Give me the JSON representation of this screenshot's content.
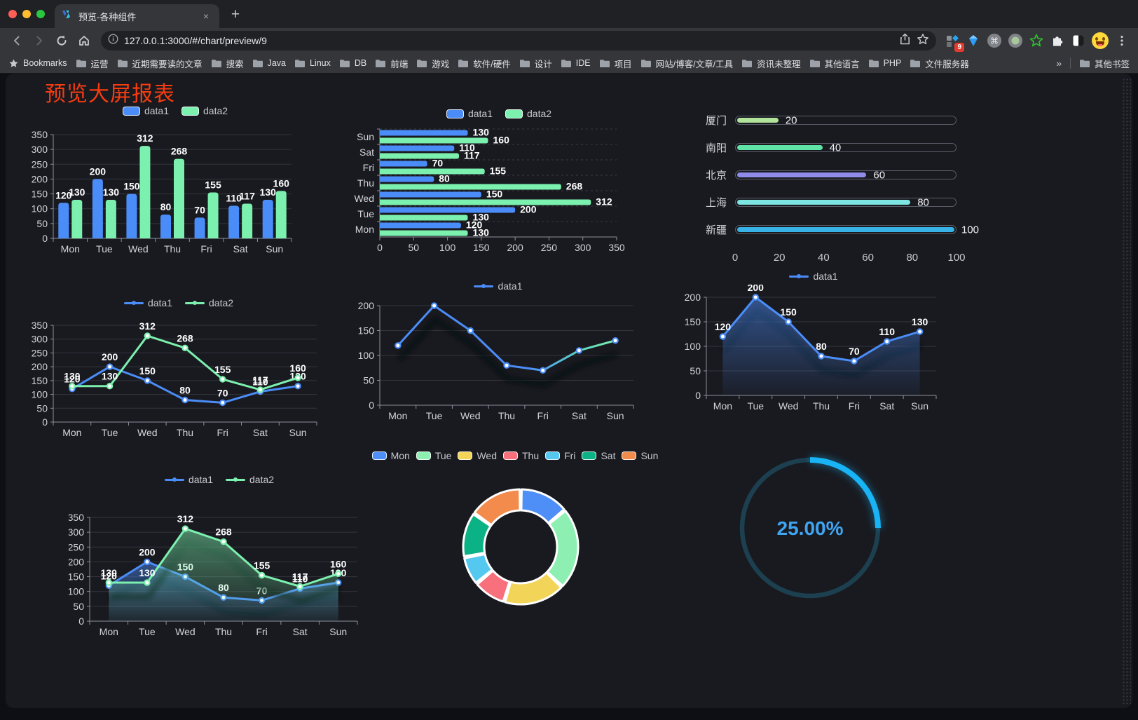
{
  "browser": {
    "tab_title": "预览-各种组件",
    "tab_close": "×",
    "new_tab": "+",
    "url": "127.0.0.1:3000/#/chart/preview/9",
    "bookmarks_label": "Bookmarks",
    "bookmarks": [
      "运营",
      "近期需要读的文章",
      "搜索",
      "Java",
      "Linux",
      "DB",
      "前端",
      "游戏",
      "软件/硬件",
      "设计",
      "IDE",
      "项目",
      "网站/博客/文章/工具",
      "资讯未整理",
      "其他语言",
      "PHP",
      "文件服务器"
    ],
    "overflow_chevron": "»",
    "other_bookmarks": "其他书签",
    "extension_badge": "9"
  },
  "page": {
    "title": "预览大屏报表",
    "title_color": "#f63c10"
  },
  "chart_data": [
    {
      "id": "grouped-bar",
      "type": "bar",
      "categories": [
        "Mon",
        "Tue",
        "Wed",
        "Thu",
        "Fri",
        "Sat",
        "Sun"
      ],
      "series": [
        {
          "name": "data1",
          "color": "#4b8df8",
          "values": [
            120,
            200,
            150,
            80,
            70,
            110,
            130
          ]
        },
        {
          "name": "data2",
          "color": "#7cf0ae",
          "values": [
            130,
            130,
            312,
            268,
            155,
            117,
            160
          ]
        }
      ],
      "ylim": [
        0,
        350
      ],
      "ystep": 50,
      "legend_position": "top",
      "value_labels": true
    },
    {
      "id": "horizontal-bar",
      "type": "bar-horizontal",
      "categories": [
        "Mon",
        "Tue",
        "Wed",
        "Thu",
        "Fri",
        "Sat",
        "Sun"
      ],
      "series": [
        {
          "name": "data1",
          "color": "#4b8df8",
          "values": [
            120,
            200,
            150,
            80,
            70,
            110,
            130
          ]
        },
        {
          "name": "data2",
          "color": "#7cf0ae",
          "values": [
            130,
            130,
            312,
            268,
            155,
            117,
            160
          ]
        }
      ],
      "xlim": [
        0,
        350
      ],
      "xstep": 50,
      "legend_position": "top",
      "value_labels": true
    },
    {
      "id": "city-progress",
      "type": "progress",
      "max": 100,
      "xticks": [
        0,
        20,
        40,
        60,
        80,
        100
      ],
      "rows": [
        {
          "label": "厦门",
          "value": 20,
          "color": "#b2e39b"
        },
        {
          "label": "南阳",
          "value": 40,
          "color": "#5fe3a6"
        },
        {
          "label": "北京",
          "value": 60,
          "color": "#8f8be8"
        },
        {
          "label": "上海",
          "value": 80,
          "color": "#7de6e2"
        },
        {
          "label": "新疆",
          "value": 100,
          "color": "#38b3e8"
        }
      ]
    },
    {
      "id": "line-two-series",
      "type": "line",
      "categories": [
        "Mon",
        "Tue",
        "Wed",
        "Thu",
        "Fri",
        "Sat",
        "Sun"
      ],
      "series": [
        {
          "name": "data1",
          "color": "#4b8df8",
          "values": [
            120,
            200,
            150,
            80,
            70,
            110,
            130
          ]
        },
        {
          "name": "data2",
          "color": "#7cf0ae",
          "values": [
            130,
            130,
            312,
            268,
            155,
            117,
            160
          ]
        }
      ],
      "ylim": [
        0,
        350
      ],
      "ystep": 50,
      "legend_position": "top",
      "value_labels": true
    },
    {
      "id": "line-gradient",
      "type": "line",
      "categories": [
        "Mon",
        "Tue",
        "Wed",
        "Thu",
        "Fri",
        "Sat",
        "Sun"
      ],
      "gradient_line": [
        "#4b8df8",
        "#7cf0ae"
      ],
      "series": [
        {
          "name": "data1",
          "color": "#4b8df8",
          "values": [
            120,
            200,
            150,
            80,
            70,
            110,
            130
          ]
        }
      ],
      "ylim": [
        0,
        200
      ],
      "ystep": 50,
      "legend_position": "top",
      "value_labels": false,
      "shadow": true
    },
    {
      "id": "area-single",
      "type": "area",
      "categories": [
        "Mon",
        "Tue",
        "Wed",
        "Thu",
        "Fri",
        "Sat",
        "Sun"
      ],
      "series": [
        {
          "name": "data1",
          "color": "#4b8df8",
          "values": [
            120,
            200,
            150,
            80,
            70,
            110,
            130
          ],
          "area": true
        }
      ],
      "ylim": [
        0,
        200
      ],
      "ystep": 50,
      "legend_position": "top",
      "value_labels": true,
      "shadow": true
    },
    {
      "id": "area-two-series",
      "type": "area",
      "categories": [
        "Mon",
        "Tue",
        "Wed",
        "Thu",
        "Fri",
        "Sat",
        "Sun"
      ],
      "series": [
        {
          "name": "data1",
          "color": "#4b8df8",
          "values": [
            120,
            200,
            150,
            80,
            70,
            110,
            130
          ],
          "area": true
        },
        {
          "name": "data2",
          "color": "#7cf0ae",
          "values": [
            130,
            130,
            312,
            268,
            155,
            117,
            160
          ],
          "area": true
        }
      ],
      "ylim": [
        0,
        350
      ],
      "ystep": 50,
      "legend_position": "top",
      "value_labels": true,
      "shadow": true
    },
    {
      "id": "weekday-donut",
      "type": "pie",
      "labels": [
        "Mon",
        "Tue",
        "Wed",
        "Thu",
        "Fri",
        "Sat",
        "Sun"
      ],
      "values": [
        120,
        200,
        150,
        80,
        70,
        110,
        130
      ],
      "colors": [
        "#4e8ef7",
        "#8df0b2",
        "#f2d458",
        "#f7707c",
        "#55c8f0",
        "#0ab286",
        "#f28b4c"
      ],
      "legend_position": "top"
    },
    {
      "id": "percent-gauge",
      "type": "gauge",
      "value": 25,
      "label": "25.00%",
      "color": "#18b4f5",
      "track_color": "#1c4050",
      "text_color": "#3ea5f2"
    }
  ]
}
